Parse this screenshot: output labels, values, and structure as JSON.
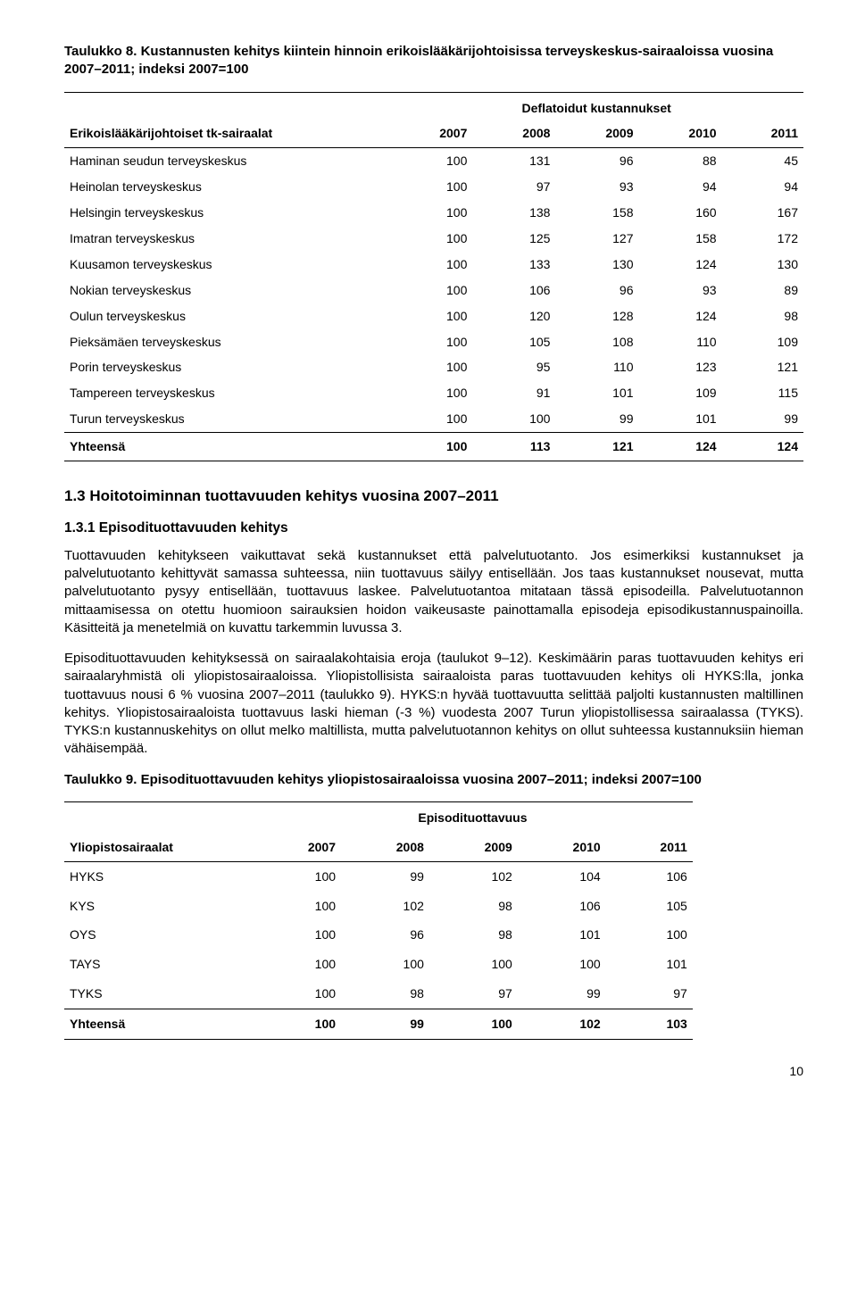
{
  "table1": {
    "title_a": "Taulukko 8.",
    "title_b": "Kustannusten kehitys kiintein hinnoin erikoislääkärijohtoisissa terveyskeskus-sairaaloissa vuosina 2007–2011; indeksi 2007=100",
    "superheader": "Deflatoidut kustannukset",
    "col0": "Erikoislääkärijohtoiset tk-sairaalat",
    "years": [
      "2007",
      "2008",
      "2009",
      "2010",
      "2011"
    ],
    "rows": [
      {
        "name": "Haminan seudun terveyskeskus",
        "v": [
          "100",
          "131",
          "96",
          "88",
          "45"
        ]
      },
      {
        "name": "Heinolan terveyskeskus",
        "v": [
          "100",
          "97",
          "93",
          "94",
          "94"
        ]
      },
      {
        "name": "Helsingin terveyskeskus",
        "v": [
          "100",
          "138",
          "158",
          "160",
          "167"
        ]
      },
      {
        "name": "Imatran terveyskeskus",
        "v": [
          "100",
          "125",
          "127",
          "158",
          "172"
        ]
      },
      {
        "name": "Kuusamon terveyskeskus",
        "v": [
          "100",
          "133",
          "130",
          "124",
          "130"
        ]
      },
      {
        "name": "Nokian terveyskeskus",
        "v": [
          "100",
          "106",
          "96",
          "93",
          "89"
        ]
      },
      {
        "name": "Oulun terveyskeskus",
        "v": [
          "100",
          "120",
          "128",
          "124",
          "98"
        ]
      },
      {
        "name": "Pieksämäen terveyskeskus",
        "v": [
          "100",
          "105",
          "108",
          "110",
          "109"
        ]
      },
      {
        "name": "Porin terveyskeskus",
        "v": [
          "100",
          "95",
          "110",
          "123",
          "121"
        ]
      },
      {
        "name": "Tampereen terveyskeskus",
        "v": [
          "100",
          "91",
          "101",
          "109",
          "115"
        ]
      },
      {
        "name": "Turun terveyskeskus",
        "v": [
          "100",
          "100",
          "99",
          "101",
          "99"
        ]
      }
    ],
    "total": {
      "name": "Yhteensä",
      "v": [
        "100",
        "113",
        "121",
        "124",
        "124"
      ]
    }
  },
  "section13": "1.3 Hoitotoiminnan tuottavuuden kehitys vuosina 2007–2011",
  "section131": "1.3.1 Episodituottavuuden kehitys",
  "para1": "Tuottavuuden kehitykseen vaikuttavat sekä kustannukset että palvelutuotanto. Jos esimerkiksi kustannukset ja palvelutuotanto kehittyvät samassa suhteessa, niin tuottavuus säilyy entisellään. Jos taas kustannukset nousevat, mutta palvelutuotanto pysyy entisellään, tuottavuus laskee. Palvelutuotantoa mitataan tässä episodeilla. Palvelutuotannon mittaamisessa on otettu huomioon sairauksien hoidon vaikeusaste painottamalla episodeja episodikustannuspainoilla. Käsitteitä ja menetelmiä on kuvattu tarkemmin luvussa 3.",
  "para2": "Episodituottavuuden kehityksessä on sairaalakohtaisia eroja (taulukot 9–12). Keskimäärin paras tuottavuuden kehitys eri sairaalaryhmistä oli yliopistosairaaloissa. Yliopistollisista sairaaloista paras tuottavuuden kehitys oli HYKS:lla, jonka tuottavuus nousi 6 % vuosina 2007–2011 (taulukko 9). HYKS:n hyvää tuottavuutta selittää paljolti kustannusten maltillinen kehitys. Yliopistosairaaloista tuottavuus laski hieman (-3 %) vuodesta 2007 Turun yliopistollisessa sairaalassa (TYKS). TYKS:n kustannuskehitys on ollut melko maltillista, mutta palvelutuotannon kehitys on ollut suhteessa kustannuksiin hieman vähäisempää.",
  "table2": {
    "title_a": "Taulukko 9.",
    "title_b": "Episodituottavuuden kehitys yliopistosairaaloissa vuosina 2007–2011; indeksi 2007=100",
    "superheader": "Episodituottavuus",
    "col0": "Yliopistosairaalat",
    "years": [
      "2007",
      "2008",
      "2009",
      "2010",
      "2011"
    ],
    "rows": [
      {
        "name": "HYKS",
        "v": [
          "100",
          "99",
          "102",
          "104",
          "106"
        ]
      },
      {
        "name": "KYS",
        "v": [
          "100",
          "102",
          "98",
          "106",
          "105"
        ]
      },
      {
        "name": "OYS",
        "v": [
          "100",
          "96",
          "98",
          "101",
          "100"
        ]
      },
      {
        "name": "TAYS",
        "v": [
          "100",
          "100",
          "100",
          "100",
          "101"
        ]
      },
      {
        "name": "TYKS",
        "v": [
          "100",
          "98",
          "97",
          "99",
          "97"
        ]
      }
    ],
    "total": {
      "name": "Yhteensä",
      "v": [
        "100",
        "99",
        "100",
        "102",
        "103"
      ]
    }
  },
  "pagenum": "10"
}
